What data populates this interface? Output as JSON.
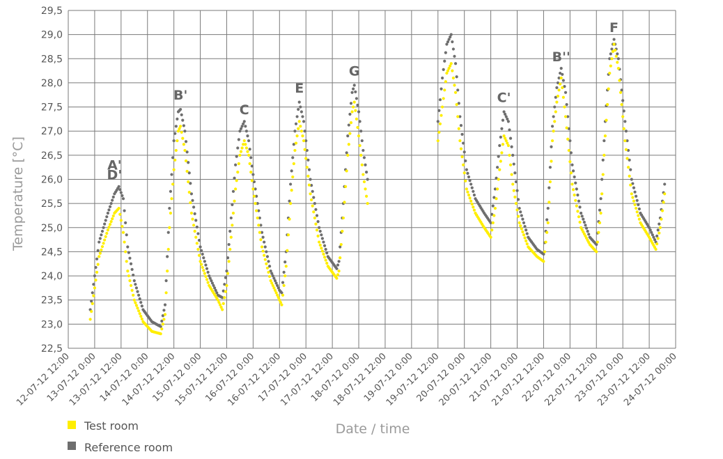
{
  "chart_data": {
    "type": "scatter",
    "ylabel": "Temperature [°C]",
    "xlabel": "Date / time",
    "ylim": [
      22.5,
      29.5
    ],
    "yticks": [
      "22,5",
      "23,0",
      "23,5",
      "24,0",
      "24,5",
      "25,0",
      "25,5",
      "26,0",
      "26,5",
      "27,0",
      "27,5",
      "28,0",
      "28,5",
      "29,0",
      "29,5"
    ],
    "xlim": [
      "12-07-12 12:00",
      "24-07-12 00:00"
    ],
    "xticks": [
      "12-07-12 12:00",
      "13-07-12 0:00",
      "13-07-12 12:00",
      "14-07-12 0:00",
      "14-07-12 12:00",
      "15-07-12 0:00",
      "15-07-12 12:00",
      "16-07-12 0:00",
      "16-07-12 12:00",
      "17-07-12 0:00",
      "17-07-12 12:00",
      "18-07-12 0:00",
      "18-07-12 12:00",
      "19-07-12 0:00",
      "19-07-12 12:00",
      "20-07-12 0:00",
      "20-07-12 12:00",
      "21-07-12 0:00",
      "21-07-12 12:00",
      "22-07-12 0:00",
      "22-07-12 12:00",
      "23-07-12 0:00",
      "23-07-12 12:00",
      "24-07-12 00:00"
    ],
    "grid": true,
    "legend_position": "bottom-left",
    "series": [
      {
        "name": "Test room",
        "color": "#ffee00",
        "segments": [
          [
            [
              "12-07-12 22:00",
              23.1
            ],
            [
              "13-07-12 02:00",
              24.4
            ],
            [
              "13-07-12 06:00",
              24.95
            ],
            [
              "13-07-12 09:00",
              25.3
            ],
            [
              "13-07-12 11:00",
              25.4
            ],
            [
              "13-07-12 13:00",
              24.9
            ],
            [
              "13-07-12 15:00",
              24.1
            ],
            [
              "13-07-12 18:00",
              23.5
            ],
            [
              "13-07-12 22:00",
              23.05
            ],
            [
              "14-07-12 02:00",
              22.85
            ],
            [
              "14-07-12 06:00",
              22.8
            ],
            [
              "14-07-12 08:00",
              23.2
            ],
            [
              "14-07-12 10:00",
              25.0
            ],
            [
              "14-07-12 12:00",
              26.2
            ],
            [
              "14-07-12 14:00",
              27.0
            ],
            [
              "14-07-12 15:00",
              27.1
            ],
            [
              "14-07-12 17:00",
              26.6
            ],
            [
              "14-07-12 20:00",
              25.3
            ],
            [
              "15-07-12 00:00",
              24.3
            ],
            [
              "15-07-12 04:00",
              23.8
            ],
            [
              "15-07-12 08:00",
              23.5
            ],
            [
              "15-07-12 10:00",
              23.3
            ],
            [
              "15-07-12 12:00",
              23.8
            ],
            [
              "15-07-12 14:00",
              24.8
            ],
            [
              "15-07-12 16:00",
              25.8
            ],
            [
              "15-07-12 18:00",
              26.5
            ],
            [
              "15-07-12 20:00",
              26.8
            ],
            [
              "15-07-12 22:00",
              26.5
            ],
            [
              "16-07-12 00:00",
              25.8
            ],
            [
              "16-07-12 04:00",
              24.6
            ],
            [
              "16-07-12 08:00",
              23.9
            ],
            [
              "16-07-12 12:00",
              23.5
            ],
            [
              "16-07-12 13:00",
              23.4
            ],
            [
              "16-07-12 15:00",
              24.2
            ],
            [
              "16-07-12 17:00",
              25.5
            ],
            [
              "16-07-12 19:00",
              26.6
            ],
            [
              "16-07-12 21:00",
              27.2
            ],
            [
              "16-07-12 23:00",
              26.8
            ],
            [
              "17-07-12 02:00",
              25.7
            ],
            [
              "17-07-12 06:00",
              24.7
            ],
            [
              "17-07-12 10:00",
              24.2
            ],
            [
              "17-07-12 14:00",
              23.95
            ],
            [
              "17-07-12 15:00",
              24.1
            ],
            [
              "17-07-12 17:00",
              25.2
            ],
            [
              "17-07-12 19:00",
              26.5
            ],
            [
              "17-07-12 21:00",
              27.4
            ],
            [
              "17-07-12 22:00",
              27.6
            ],
            [
              "18-07-12 00:00",
              26.9
            ],
            [
              "18-07-12 02:00",
              26.1
            ],
            [
              "18-07-12 04:00",
              25.5
            ]
          ],
          [
            [
              "19-07-12 12:00",
              26.8
            ],
            [
              "19-07-12 14:00",
              27.5
            ],
            [
              "19-07-12 16:00",
              28.2
            ],
            [
              "19-07-12 18:00",
              28.4
            ],
            [
              "19-07-12 20:00",
              27.8
            ],
            [
              "19-07-12 22:00",
              26.8
            ],
            [
              "20-07-12 01:00",
              25.8
            ],
            [
              "20-07-12 05:00",
              25.3
            ],
            [
              "20-07-12 09:00",
              25.0
            ],
            [
              "20-07-12 12:00",
              24.8
            ],
            [
              "20-07-12 14:00",
              25.4
            ],
            [
              "20-07-12 16:00",
              26.2
            ],
            [
              "20-07-12 18:00",
              26.9
            ],
            [
              "20-07-12 20:00",
              26.7
            ],
            [
              "20-07-12 22:00",
              25.9
            ],
            [
              "21-07-12 01:00",
              25.1
            ],
            [
              "21-07-12 05:00",
              24.6
            ],
            [
              "21-07-12 09:00",
              24.4
            ],
            [
              "21-07-12 12:00",
              24.3
            ],
            [
              "21-07-12 14:00",
              25.1
            ],
            [
              "21-07-12 16:00",
              26.8
            ],
            [
              "21-07-12 18:00",
              27.6
            ],
            [
              "21-07-12 20:00",
              28.1
            ],
            [
              "21-07-12 22:00",
              27.3
            ],
            [
              "22-07-12 01:00",
              25.9
            ],
            [
              "22-07-12 05:00",
              25.0
            ],
            [
              "22-07-12 09:00",
              24.65
            ],
            [
              "22-07-12 12:00",
              24.5
            ],
            [
              "22-07-12 14:00",
              25.3
            ],
            [
              "22-07-12 16:00",
              26.9
            ],
            [
              "22-07-12 18:00",
              28.2
            ],
            [
              "22-07-12 20:00",
              28.8
            ],
            [
              "22-07-12 22:00",
              28.3
            ],
            [
              "23-07-12 01:00",
              26.8
            ],
            [
              "23-07-12 04:00",
              25.7
            ],
            [
              "23-07-12 08:00",
              25.1
            ],
            [
              "23-07-12 12:00",
              24.8
            ],
            [
              "23-07-12 15:00",
              24.55
            ],
            [
              "23-07-12 17:00",
              25.0
            ],
            [
              "23-07-12 19:00",
              25.7
            ]
          ]
        ]
      },
      {
        "name": "Reference room",
        "color": "#6e6e6e",
        "segments": [
          [
            [
              "12-07-12 22:00",
              23.3
            ],
            [
              "13-07-12 02:00",
              24.7
            ],
            [
              "13-07-12 06:00",
              25.3
            ],
            [
              "13-07-12 09:00",
              25.7
            ],
            [
              "13-07-12 11:00",
              25.85
            ],
            [
              "13-07-12 13:00",
              25.6
            ],
            [
              "13-07-12 15:00",
              24.6
            ],
            [
              "13-07-12 18:00",
              23.9
            ],
            [
              "13-07-12 22:00",
              23.3
            ],
            [
              "14-07-12 02:00",
              23.05
            ],
            [
              "14-07-12 06:00",
              22.95
            ],
            [
              "14-07-12 08:00",
              23.4
            ],
            [
              "14-07-12 10:00",
              25.4
            ],
            [
              "14-07-12 12:00",
              26.8
            ],
            [
              "14-07-12 14:00",
              27.4
            ],
            [
              "14-07-12 15:00",
              27.45
            ],
            [
              "14-07-12 17:00",
              27.0
            ],
            [
              "14-07-12 20:00",
              25.7
            ],
            [
              "15-07-12 00:00",
              24.6
            ],
            [
              "15-07-12 04:00",
              24.0
            ],
            [
              "15-07-12 08:00",
              23.6
            ],
            [
              "15-07-12 10:00",
              23.55
            ],
            [
              "15-07-12 12:00",
              24.1
            ],
            [
              "15-07-12 14:00",
              25.2
            ],
            [
              "15-07-12 16:00",
              26.3
            ],
            [
              "15-07-12 18:00",
              27.0
            ],
            [
              "15-07-12 20:00",
              27.2
            ],
            [
              "15-07-12 22:00",
              26.8
            ],
            [
              "16-07-12 00:00",
              26.1
            ],
            [
              "16-07-12 04:00",
              24.9
            ],
            [
              "16-07-12 08:00",
              24.1
            ],
            [
              "16-07-12 12:00",
              23.7
            ],
            [
              "16-07-12 13:00",
              23.65
            ],
            [
              "16-07-12 15:00",
              24.5
            ],
            [
              "16-07-12 17:00",
              25.9
            ],
            [
              "16-07-12 19:00",
              27.0
            ],
            [
              "16-07-12 21:00",
              27.6
            ],
            [
              "16-07-12 23:00",
              27.2
            ],
            [
              "17-07-12 02:00",
              26.0
            ],
            [
              "17-07-12 06:00",
              25.0
            ],
            [
              "17-07-12 10:00",
              24.4
            ],
            [
              "17-07-12 14:00",
              24.15
            ],
            [
              "17-07-12 15:00",
              24.3
            ],
            [
              "17-07-12 17:00",
              25.5
            ],
            [
              "17-07-12 19:00",
              26.9
            ],
            [
              "17-07-12 21:00",
              27.8
            ],
            [
              "17-07-12 22:00",
              27.95
            ],
            [
              "18-07-12 00:00",
              27.4
            ],
            [
              "18-07-12 02:00",
              26.6
            ],
            [
              "18-07-12 04:00",
              26.0
            ]
          ],
          [
            [
              "19-07-12 12:00",
              27.2
            ],
            [
              "19-07-12 14:00",
              28.1
            ],
            [
              "19-07-12 16:00",
              28.8
            ],
            [
              "19-07-12 18:00",
              29.0
            ],
            [
              "19-07-12 20:00",
              28.4
            ],
            [
              "19-07-12 22:00",
              27.3
            ],
            [
              "20-07-12 01:00",
              26.2
            ],
            [
              "20-07-12 05:00",
              25.6
            ],
            [
              "20-07-12 09:00",
              25.3
            ],
            [
              "20-07-12 12:00",
              25.1
            ],
            [
              "20-07-12 14:00",
              25.8
            ],
            [
              "20-07-12 16:00",
              26.7
            ],
            [
              "20-07-12 18:00",
              27.4
            ],
            [
              "20-07-12 20:00",
              27.2
            ],
            [
              "20-07-12 22:00",
              26.5
            ],
            [
              "21-07-12 01:00",
              25.4
            ],
            [
              "21-07-12 05:00",
              24.8
            ],
            [
              "21-07-12 09:00",
              24.55
            ],
            [
              "21-07-12 12:00",
              24.45
            ],
            [
              "21-07-12 14:00",
              25.4
            ],
            [
              "21-07-12 16:00",
              27.1
            ],
            [
              "21-07-12 18:00",
              27.9
            ],
            [
              "21-07-12 20:00",
              28.3
            ],
            [
              "21-07-12 22:00",
              27.8
            ],
            [
              "22-07-12 01:00",
              26.3
            ],
            [
              "22-07-12 05:00",
              25.3
            ],
            [
              "22-07-12 09:00",
              24.8
            ],
            [
              "22-07-12 12:00",
              24.65
            ],
            [
              "22-07-12 14:00",
              25.6
            ],
            [
              "22-07-12 16:00",
              27.2
            ],
            [
              "22-07-12 18:00",
              28.5
            ],
            [
              "22-07-12 20:00",
              28.9
            ],
            [
              "22-07-12 22:00",
              28.5
            ],
            [
              "23-07-12 01:00",
              27.2
            ],
            [
              "23-07-12 04:00",
              26.0
            ],
            [
              "23-07-12 08:00",
              25.3
            ],
            [
              "23-07-12 12:00",
              25.0
            ],
            [
              "23-07-12 15:00",
              24.7
            ],
            [
              "23-07-12 17:00",
              25.2
            ],
            [
              "23-07-12 19:00",
              25.9
            ]
          ]
        ]
      }
    ],
    "annotations": [
      {
        "text": "A'",
        "x": "13-07-12 09:00",
        "y": 26.2
      },
      {
        "text": "D'",
        "x": "13-07-12 09:00",
        "y": 26.0
      },
      {
        "text": "B'",
        "x": "14-07-12 15:00",
        "y": 27.65
      },
      {
        "text": "C",
        "x": "15-07-12 20:00",
        "y": 27.35
      },
      {
        "text": "E",
        "x": "16-07-12 21:00",
        "y": 27.8
      },
      {
        "text": "G",
        "x": "17-07-12 22:00",
        "y": 28.15
      },
      {
        "text": "C'",
        "x": "20-07-12 18:00",
        "y": 27.6
      },
      {
        "text": "B''",
        "x": "21-07-12 20:00",
        "y": 28.45
      },
      {
        "text": "F",
        "x": "22-07-12 20:00",
        "y": 29.05
      }
    ]
  }
}
